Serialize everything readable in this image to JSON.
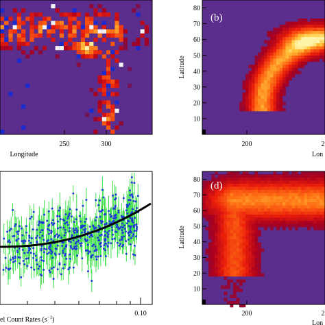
{
  "colors": {
    "background": "#5b2d8c",
    "heat_low": "#c0001a",
    "heat_mid": "#ff4a00",
    "heat_high": "#ffe27a",
    "scatter_point": "#1f3bd6",
    "error_bar": "#3fe04a",
    "fit_line": "#000000",
    "frame": "#000000",
    "label_text": "#ffffff"
  },
  "panels": {
    "a": {
      "x_ticks": [
        "250",
        "300"
      ],
      "x_label": "Longitude"
    },
    "b": {
      "label": "(b)",
      "y_ticks": [
        "10",
        "20",
        "30",
        "40",
        "50",
        "60",
        "70",
        "80"
      ],
      "y_label": "Latitude",
      "x_ticks": [
        "200",
        "2"
      ],
      "x_label": "Lon"
    },
    "c": {
      "x_ticks": [
        "0.10"
      ],
      "x_label": "el Count Rates (s",
      "x_label_sup": "−1",
      "x_label_end": ")"
    },
    "d": {
      "label": "(d)",
      "y_ticks": [
        "10",
        "20",
        "30",
        "40",
        "50",
        "60",
        "70",
        "80"
      ],
      "y_label": "Latitude",
      "x_ticks": [
        "200",
        "2"
      ],
      "x_label": "Lon"
    }
  },
  "chart_data": [
    {
      "type": "heatmap",
      "panel": "a",
      "xlabel": "Longitude",
      "ylabel": "",
      "xlim": [
        200,
        320
      ],
      "x_ticks": [
        250,
        300
      ],
      "description_colors": "density map, purple background, warm colours high"
    },
    {
      "type": "heatmap",
      "panel": "b",
      "xlabel": "Lon",
      "ylabel": "Latitude",
      "xlim": [
        190,
        250
      ],
      "ylim": [
        0,
        80
      ],
      "x_ticks": [
        200
      ],
      "y_ticks": [
        10,
        20,
        30,
        40,
        50,
        60,
        70,
        80
      ]
    },
    {
      "type": "scatter",
      "panel": "c",
      "xlabel": "el Count Rates (s−1)",
      "x_scale": "log",
      "x_ticks": [
        0.1
      ],
      "grid": false
    },
    {
      "type": "heatmap",
      "panel": "d",
      "xlabel": "Lon",
      "ylabel": "Latitude",
      "xlim": [
        190,
        250
      ],
      "ylim": [
        0,
        80
      ],
      "x_ticks": [
        200
      ],
      "y_ticks": [
        10,
        20,
        30,
        40,
        50,
        60,
        70,
        80
      ]
    }
  ]
}
